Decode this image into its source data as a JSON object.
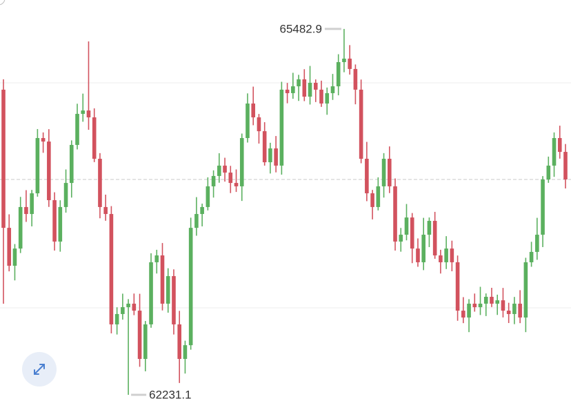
{
  "chart_data": {
    "type": "candlestick",
    "ylim": [
      62096,
      65740
    ],
    "up_color": "#5bb05f",
    "down_color": "#d2525e",
    "open": [
      64943,
      63715,
      63378,
      63531,
      63900,
      63838,
      64022,
      64513,
      64482,
      63961,
      63593,
      63900,
      64114,
      64452,
      64728,
      64758,
      64697,
      64329,
      63900,
      63838,
      62857,
      62949,
      63010,
      63041,
      62979,
      62550,
      62857,
      63409,
      63470,
      63041,
      63286,
      62857,
      62550,
      62672,
      63715,
      63838,
      63900,
      64084,
      64176,
      64268,
      64206,
      64114,
      64084,
      64513,
      64820,
      64697,
      64574,
      64298,
      64421,
      64268,
      64943,
      64912,
      64973,
      65035,
      64881,
      65004,
      64943,
      64820,
      64912,
      64973,
      65188,
      65219,
      65127,
      64943,
      64329,
      64022,
      63900,
      64084,
      64329,
      64084,
      63593,
      63654,
      63807,
      63531,
      63409,
      63654,
      63777,
      63470,
      63409,
      63531,
      63409,
      62979,
      62918,
      63041,
      63010,
      63041,
      63102,
      63041,
      63071,
      62979,
      62949,
      63041,
      62918,
      63409,
      63501,
      63654,
      64145,
      64268,
      64513,
      64390
    ],
    "high": [
      65035,
      63835,
      63571,
      63990,
      64050,
      64052,
      64593,
      64563,
      64592,
      64031,
      63960,
      64234,
      64492,
      64818,
      64908,
      65372,
      64777,
      64379,
      64010,
      63908,
      63009,
      63130,
      63081,
      63131,
      63129,
      62887,
      63489,
      63520,
      63580,
      63356,
      63346,
      62977,
      62712,
      63805,
      63988,
      63930,
      64164,
      64226,
      64378,
      64338,
      64266,
      64234,
      64553,
      64910,
      64970,
      64727,
      64654,
      64471,
      64531,
      65013,
      65003,
      65093,
      65075,
      65125,
      65154,
      65034,
      65023,
      64962,
      65083,
      65258,
      65482.9,
      65339,
      65167,
      65033,
      64479,
      64052,
      64164,
      64379,
      64439,
      64154,
      63714,
      63927,
      63847,
      63621,
      63804,
      63807,
      63857,
      63520,
      63641,
      63601,
      63469,
      63099,
      63081,
      63131,
      63191,
      63132,
      63182,
      63121,
      63181,
      63049,
      63101,
      63161,
      63449,
      63591,
      63804,
      64175,
      64348,
      64563,
      64623,
      64460
    ],
    "low": [
      63041,
      63328,
      63248,
      63491,
      63768,
      63728,
      63992,
      64382,
      63901,
      63513,
      63503,
      63850,
      63984,
      64412,
      64658,
      64587,
      64299,
      63800,
      63778,
      62777,
      62767,
      62899,
      62231.1,
      62939,
      62480,
      62440,
      62827,
      63309,
      62981,
      62961,
      62767,
      62336,
      62420,
      62632,
      63645,
      63728,
      63870,
      63984,
      64116,
      64126,
      64024,
      64034,
      63954,
      64473,
      64627,
      64464,
      64268,
      64198,
      64208,
      64188,
      64822,
      64862,
      64843,
      64841,
      64811,
      64833,
      64790,
      64720,
      64852,
      64893,
      65098,
      65077,
      64813,
      64289,
      63952,
      63790,
      63870,
      63984,
      64024,
      63513,
      63503,
      63604,
      63401,
      63369,
      63339,
      63544,
      63440,
      63309,
      63349,
      63329,
      62889,
      62868,
      62788,
      62970,
      62940,
      62931,
      63011,
      62941,
      62919,
      62869,
      62859,
      62868,
      62788,
      63369,
      63431,
      63544,
      64115,
      64168,
      64330,
      64065
    ],
    "close": [
      63715,
      63378,
      63531,
      63900,
      63838,
      64022,
      64513,
      64482,
      63961,
      63593,
      63900,
      64114,
      64452,
      64728,
      64758,
      64697,
      64329,
      63900,
      63838,
      62857,
      62949,
      63010,
      63041,
      62979,
      62550,
      62857,
      63409,
      63470,
      63041,
      63286,
      62857,
      62550,
      62672,
      63715,
      63838,
      63900,
      64084,
      64176,
      64268,
      64206,
      64114,
      64084,
      64513,
      64820,
      64697,
      64574,
      64298,
      64421,
      64268,
      64943,
      64912,
      64973,
      65035,
      64881,
      65004,
      64943,
      64820,
      64912,
      64973,
      65188,
      65219,
      65127,
      64943,
      64329,
      64022,
      63900,
      64084,
      64329,
      64084,
      63593,
      63654,
      63807,
      63531,
      63409,
      63654,
      63777,
      63470,
      63409,
      63531,
      63409,
      62979,
      62918,
      63041,
      63010,
      63041,
      63102,
      63041,
      63071,
      62979,
      62949,
      63041,
      62918,
      63409,
      63501,
      63654,
      64145,
      64268,
      64513,
      64390,
      64145
    ]
  }
}
